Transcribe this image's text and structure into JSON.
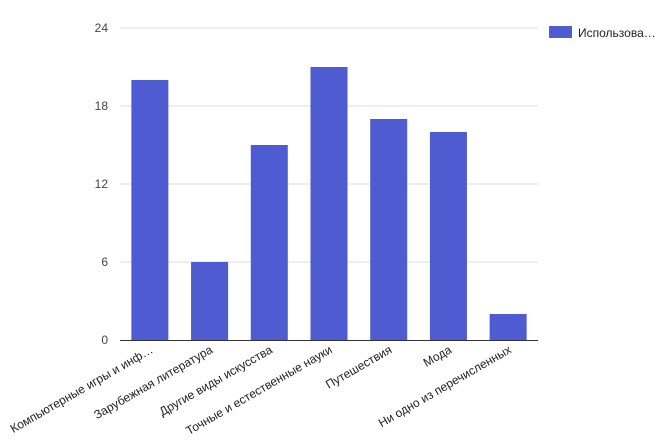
{
  "chart_data": {
    "type": "bar",
    "categories": [
      "Компьютерные игры и инф…",
      "Зарубежная литература",
      "Другие виды искусства",
      "Точные и естественные науки",
      "Путешествия",
      "Мода",
      "Ни одно из перечисленных"
    ],
    "series": [
      {
        "name": "Использова…",
        "values": [
          20,
          6,
          15,
          21,
          17,
          16,
          2
        ]
      }
    ],
    "ylim": [
      0,
      24
    ],
    "yticks": [
      "0",
      "6",
      "12",
      "18",
      "24"
    ],
    "grid": true,
    "legend_position": "top-right",
    "bar_color": "#4e5bd1",
    "grid_color": "#dddddd",
    "axis_color": "#333333"
  }
}
